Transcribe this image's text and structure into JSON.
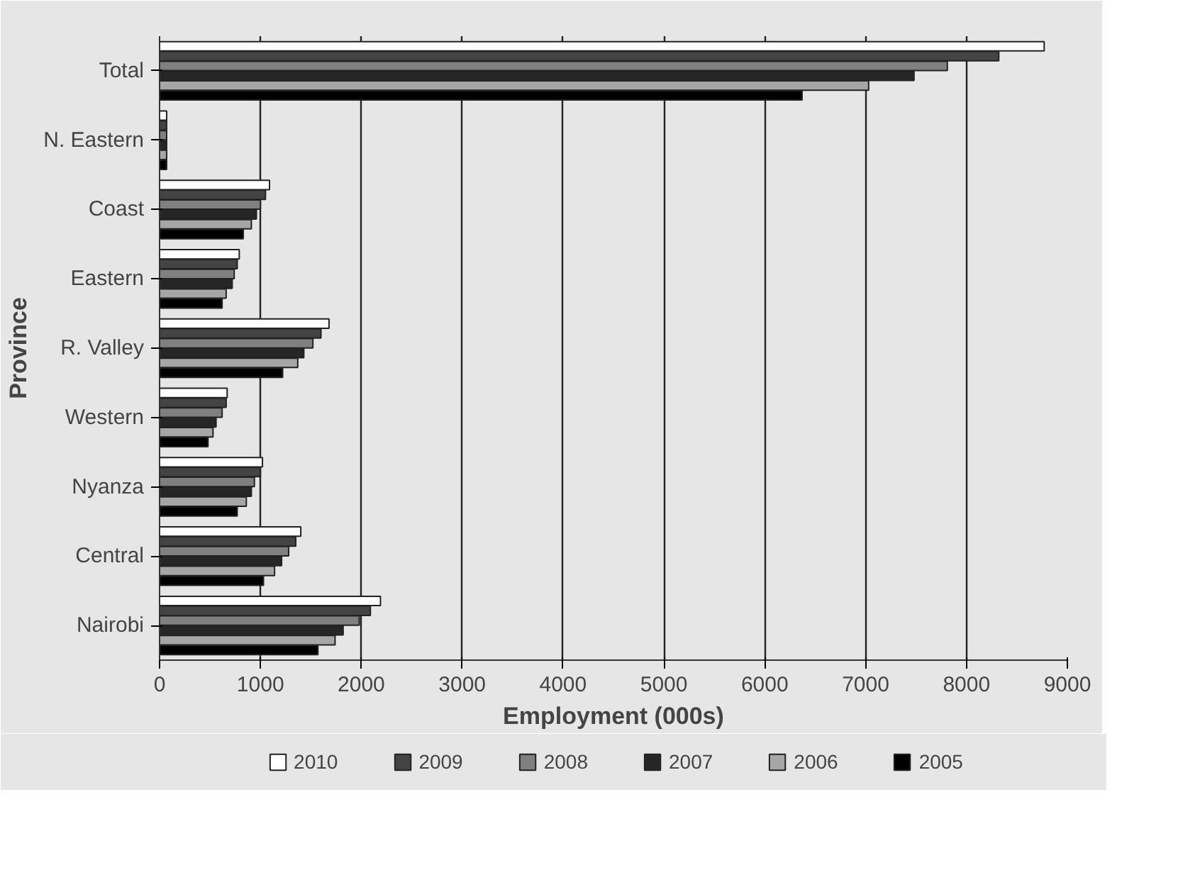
{
  "chart_data": {
    "type": "bar",
    "orientation": "horizontal",
    "xlabel": "Employment (000s)",
    "ylabel": "Province",
    "categories": [
      "Total",
      "N. Eastern",
      "Coast",
      "Eastern",
      "R. Valley",
      "Western",
      "Nyanza",
      "Central",
      "Nairobi"
    ],
    "xlim": [
      0,
      9000
    ],
    "xticks": [
      0,
      1000,
      2000,
      3000,
      4000,
      5000,
      6000,
      7000,
      8000,
      9000
    ],
    "grid": "x",
    "legend": "bottom",
    "series": [
      {
        "name": "2010",
        "color": "#ffffff",
        "values": [
          8770,
          70,
          1090,
          790,
          1680,
          670,
          1020,
          1400,
          2190
        ]
      },
      {
        "name": "2009",
        "color": "#444444",
        "values": [
          8320,
          70,
          1050,
          770,
          1600,
          660,
          1000,
          1350,
          2090
        ]
      },
      {
        "name": "2008",
        "color": "#808080",
        "values": [
          7810,
          70,
          1000,
          740,
          1520,
          620,
          940,
          1280,
          1980
        ]
      },
      {
        "name": "2007",
        "color": "#262626",
        "values": [
          7480,
          70,
          960,
          720,
          1430,
          560,
          910,
          1210,
          1820
        ]
      },
      {
        "name": "2006",
        "color": "#a6a6a6",
        "values": [
          7030,
          70,
          910,
          660,
          1370,
          530,
          860,
          1140,
          1740
        ]
      },
      {
        "name": "2005",
        "color": "#000000",
        "values": [
          6370,
          70,
          830,
          620,
          1220,
          480,
          770,
          1030,
          1570
        ]
      }
    ]
  }
}
